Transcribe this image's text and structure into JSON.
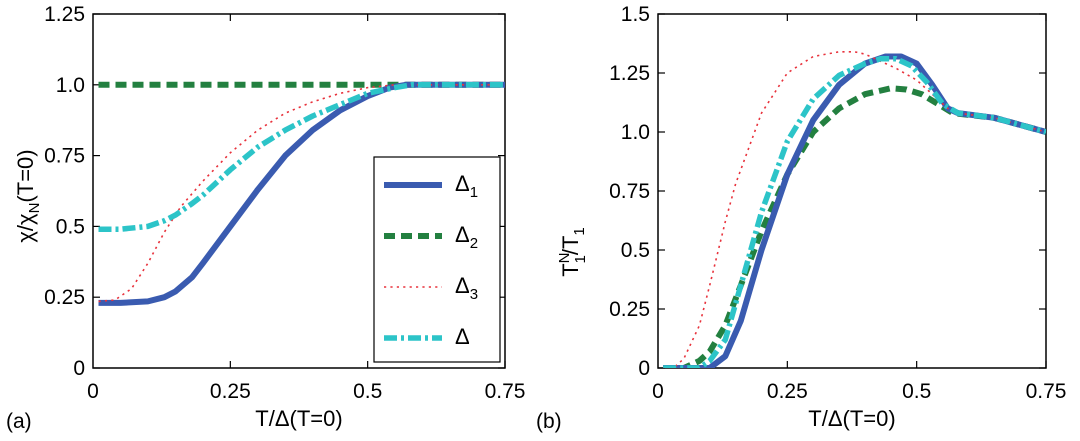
{
  "chart_data": [
    {
      "type": "line",
      "panel": "(a)",
      "xlabel": "T/Δ(T=0)",
      "ylabel": {
        "base": "χ/χ",
        "sub": "N",
        "rest": "(T=0)"
      },
      "xlim": [
        0,
        0.75
      ],
      "ylim": [
        0,
        1.25
      ],
      "xticks": [
        "0.25",
        "0.5",
        "0.75"
      ],
      "xtick_values": [
        0.25,
        0.5,
        0.75
      ],
      "xtick_zero": "0",
      "yticks": [
        "0",
        "0.25",
        "0.5",
        "0.75",
        "1.0",
        "1.25"
      ],
      "ytick_values": [
        0,
        0.25,
        0.5,
        0.75,
        1.0,
        1.25
      ],
      "legend_position": "lower-right",
      "series": [
        {
          "name": "Δ1",
          "base": "Δ",
          "sub": "1",
          "color": "#3a5bb0",
          "style": "solid",
          "x": [
            0.01,
            0.05,
            0.1,
            0.13,
            0.15,
            0.18,
            0.2,
            0.25,
            0.3,
            0.35,
            0.4,
            0.45,
            0.5,
            0.54,
            0.57,
            0.6,
            0.65,
            0.7,
            0.75
          ],
          "y": [
            0.23,
            0.23,
            0.235,
            0.25,
            0.27,
            0.32,
            0.37,
            0.5,
            0.63,
            0.75,
            0.84,
            0.91,
            0.96,
            0.99,
            1.0,
            1.0,
            1.0,
            1.0,
            1.0
          ]
        },
        {
          "name": "Δ2",
          "base": "Δ",
          "sub": "2",
          "color": "#238040",
          "style": "dashed",
          "x": [
            0.01,
            0.75
          ],
          "y": [
            1.0,
            1.0
          ]
        },
        {
          "name": "Δ3",
          "base": "Δ",
          "sub": "3",
          "color": "#e8323c",
          "style": "dotted",
          "x": [
            0.01,
            0.04,
            0.07,
            0.1,
            0.13,
            0.16,
            0.2,
            0.25,
            0.3,
            0.35,
            0.4,
            0.45,
            0.5,
            0.55,
            0.6,
            0.75
          ],
          "y": [
            0.235,
            0.24,
            0.28,
            0.37,
            0.48,
            0.57,
            0.66,
            0.76,
            0.84,
            0.9,
            0.94,
            0.97,
            0.99,
            1.0,
            1.0,
            1.0
          ]
        },
        {
          "name": "Δ",
          "base": "Δ",
          "sub": "",
          "color": "#2cc4c8",
          "style": "dashdot",
          "x": [
            0.01,
            0.05,
            0.1,
            0.13,
            0.15,
            0.18,
            0.2,
            0.25,
            0.3,
            0.35,
            0.4,
            0.45,
            0.5,
            0.55,
            0.58,
            0.75
          ],
          "y": [
            0.49,
            0.49,
            0.5,
            0.52,
            0.54,
            0.58,
            0.61,
            0.7,
            0.78,
            0.84,
            0.89,
            0.93,
            0.97,
            0.99,
            1.0,
            1.0
          ]
        }
      ]
    },
    {
      "type": "line",
      "panel": "(b)",
      "xlabel": "T/Δ(T=0)",
      "ylabel": {
        "base": "T",
        "sup": "N",
        "sub": "1",
        "mid": "/T",
        "sub2": "1"
      },
      "xlim": [
        0,
        0.75
      ],
      "ylim": [
        0,
        1.5
      ],
      "xticks": [
        "0.25",
        "0.5",
        "0.75"
      ],
      "xtick_values": [
        0.25,
        0.5,
        0.75
      ],
      "xtick_zero": "0",
      "yticks": [
        "0",
        "0.25",
        "0.5",
        "0.75",
        "1.0",
        "1.25",
        "1.5"
      ],
      "ytick_values": [
        0,
        0.25,
        0.5,
        0.75,
        1.0,
        1.25,
        1.5
      ],
      "series": [
        {
          "name": "Δ1",
          "color": "#3a5bb0",
          "style": "solid",
          "x": [
            0.01,
            0.1,
            0.13,
            0.16,
            0.2,
            0.25,
            0.3,
            0.35,
            0.4,
            0.44,
            0.47,
            0.5,
            0.53,
            0.56,
            0.58,
            0.65,
            0.75
          ],
          "y": [
            0.0,
            0.0,
            0.05,
            0.2,
            0.5,
            0.82,
            1.05,
            1.2,
            1.29,
            1.32,
            1.32,
            1.29,
            1.2,
            1.1,
            1.08,
            1.06,
            1.0
          ]
        },
        {
          "name": "Δ2",
          "color": "#238040",
          "style": "dashed",
          "x": [
            0.01,
            0.05,
            0.08,
            0.1,
            0.13,
            0.16,
            0.2,
            0.25,
            0.3,
            0.35,
            0.4,
            0.45,
            0.48,
            0.51,
            0.54,
            0.57,
            0.65,
            0.75
          ],
          "y": [
            0.0,
            0.0,
            0.03,
            0.07,
            0.18,
            0.35,
            0.58,
            0.82,
            1.0,
            1.1,
            1.16,
            1.185,
            1.18,
            1.16,
            1.12,
            1.08,
            1.06,
            1.0
          ]
        },
        {
          "name": "Δ3",
          "color": "#e8323c",
          "style": "dotted",
          "x": [
            0.01,
            0.03,
            0.05,
            0.08,
            0.1,
            0.13,
            0.15,
            0.2,
            0.25,
            0.3,
            0.35,
            0.38,
            0.4,
            0.43,
            0.46,
            0.5,
            0.53,
            0.56,
            0.58,
            0.65,
            0.75
          ],
          "y": [
            0.0,
            0.0,
            0.04,
            0.18,
            0.35,
            0.62,
            0.78,
            1.08,
            1.25,
            1.32,
            1.34,
            1.34,
            1.33,
            1.3,
            1.27,
            1.22,
            1.16,
            1.1,
            1.08,
            1.06,
            1.0
          ]
        },
        {
          "name": "Δ",
          "color": "#2cc4c8",
          "style": "dashdot",
          "x": [
            0.01,
            0.08,
            0.1,
            0.13,
            0.16,
            0.2,
            0.25,
            0.3,
            0.35,
            0.4,
            0.43,
            0.46,
            0.49,
            0.52,
            0.55,
            0.58,
            0.65,
            0.75
          ],
          "y": [
            0.0,
            0.0,
            0.03,
            0.12,
            0.35,
            0.66,
            0.96,
            1.14,
            1.24,
            1.29,
            1.31,
            1.31,
            1.28,
            1.21,
            1.12,
            1.08,
            1.06,
            1.0
          ]
        }
      ]
    }
  ]
}
